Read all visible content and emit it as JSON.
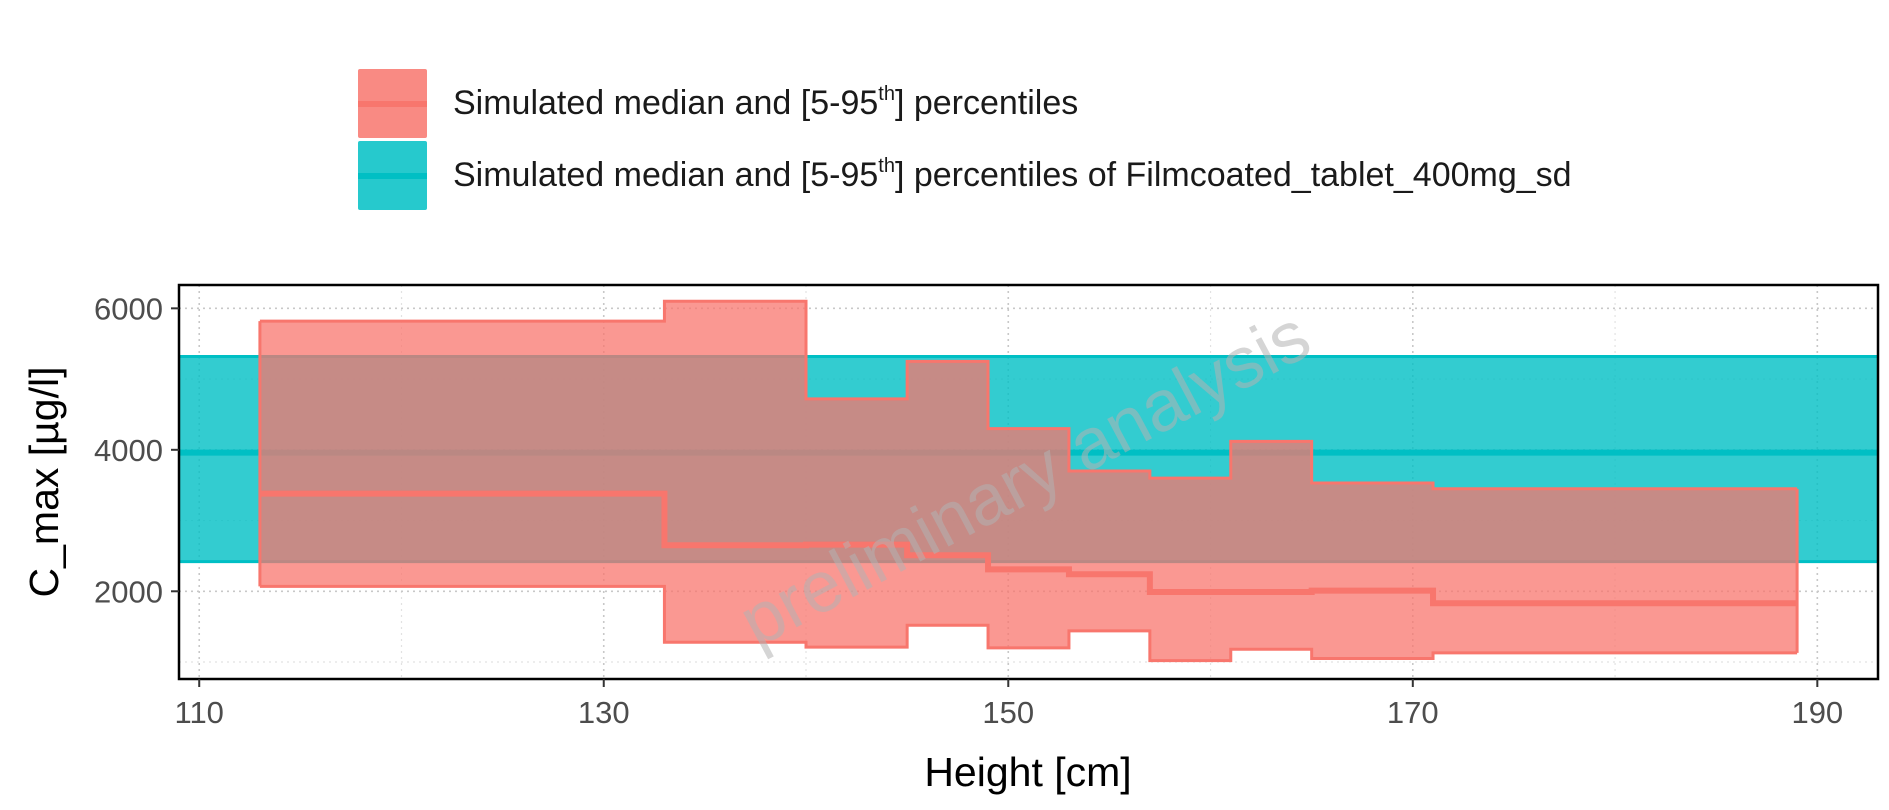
{
  "chart_data": {
    "type": "area",
    "xlabel": "Height [cm]",
    "ylabel": "C_max [µg/l]",
    "xlim": [
      109,
      193
    ],
    "ylim": [
      760,
      6330
    ],
    "xticks": [
      110,
      130,
      150,
      170,
      190
    ],
    "yticks": [
      2000,
      4000,
      6000
    ],
    "grid": true,
    "legend_position": "top",
    "watermark": "preliminary analysis",
    "colors": {
      "simulated": "#F8766D",
      "reference": "#00BFC4"
    },
    "legend": [
      {
        "text_before": "Simulated median and [5-95",
        "sup": "th",
        "text_after": "] percentiles"
      },
      {
        "text_before": "Simulated median and [5-95",
        "sup": "th",
        "text_after": "] percentiles of Filmcoated_tablet_400mg_sd"
      }
    ],
    "series": [
      {
        "kind": "step-band",
        "bins": [
          {
            "x_start": 113,
            "x_end": 133,
            "p5": 2070,
            "median": 3380,
            "p95": 5820
          },
          {
            "x_start": 133,
            "x_end": 140,
            "p5": 1280,
            "median": 2650,
            "p95": 6100
          },
          {
            "x_start": 140,
            "x_end": 145,
            "p5": 1210,
            "median": 2660,
            "p95": 4720
          },
          {
            "x_start": 145,
            "x_end": 149,
            "p5": 1520,
            "median": 2510,
            "p95": 5250
          },
          {
            "x_start": 149,
            "x_end": 153,
            "p5": 1200,
            "median": 2310,
            "p95": 4300
          },
          {
            "x_start": 153,
            "x_end": 157,
            "p5": 1440,
            "median": 2240,
            "p95": 3700
          },
          {
            "x_start": 157,
            "x_end": 161,
            "p5": 1020,
            "median": 1990,
            "p95": 3600
          },
          {
            "x_start": 161,
            "x_end": 165,
            "p5": 1180,
            "median": 1990,
            "p95": 4120
          },
          {
            "x_start": 165,
            "x_end": 171,
            "p5": 1050,
            "median": 2010,
            "p95": 3530
          },
          {
            "x_start": 171,
            "x_end": 189,
            "p5": 1130,
            "median": 1830,
            "p95": 3450
          }
        ]
      },
      {
        "kind": "constant-band",
        "x_start": 109,
        "x_end": 193,
        "p5": 2420,
        "median": 3960,
        "p95": 5320
      }
    ]
  }
}
